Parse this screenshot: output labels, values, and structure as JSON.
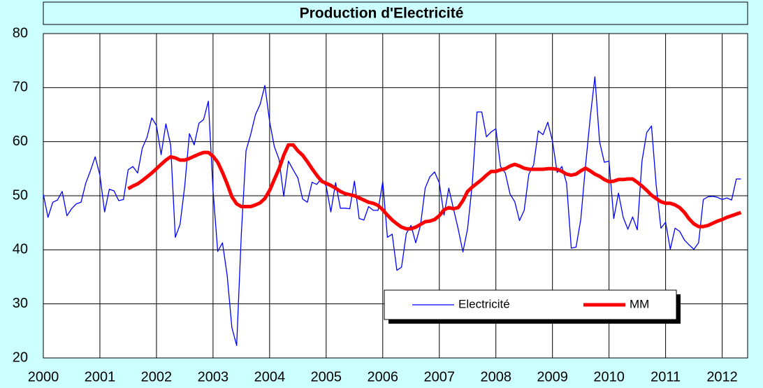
{
  "chart_data": {
    "type": "line",
    "title": "Production d'Electricité",
    "x": [
      2000,
      2000.083,
      2000.167,
      2000.25,
      2000.333,
      2000.417,
      2000.5,
      2000.583,
      2000.667,
      2000.75,
      2000.833,
      2000.917,
      2001,
      2001.083,
      2001.167,
      2001.25,
      2001.333,
      2001.417,
      2001.5,
      2001.583,
      2001.667,
      2001.75,
      2001.833,
      2001.917,
      2002,
      2002.083,
      2002.167,
      2002.25,
      2002.333,
      2002.417,
      2002.5,
      2002.583,
      2002.667,
      2002.75,
      2002.833,
      2002.917,
      2003,
      2003.083,
      2003.167,
      2003.25,
      2003.333,
      2003.417,
      2003.5,
      2003.583,
      2003.667,
      2003.75,
      2003.833,
      2003.917,
      2004,
      2004.083,
      2004.167,
      2004.25,
      2004.333,
      2004.417,
      2004.5,
      2004.583,
      2004.667,
      2004.75,
      2004.833,
      2004.917,
      2005,
      2005.083,
      2005.167,
      2005.25,
      2005.333,
      2005.417,
      2005.5,
      2005.583,
      2005.667,
      2005.75,
      2005.833,
      2005.917,
      2006,
      2006.083,
      2006.167,
      2006.25,
      2006.333,
      2006.417,
      2006.5,
      2006.583,
      2006.667,
      2006.75,
      2006.833,
      2006.917,
      2007,
      2007.083,
      2007.167,
      2007.25,
      2007.333,
      2007.417,
      2007.5,
      2007.583,
      2007.667,
      2007.75,
      2007.833,
      2007.917,
      2008,
      2008.083,
      2008.167,
      2008.25,
      2008.333,
      2008.417,
      2008.5,
      2008.583,
      2008.667,
      2008.75,
      2008.833,
      2008.917,
      2009,
      2009.083,
      2009.167,
      2009.25,
      2009.333,
      2009.417,
      2009.5,
      2009.583,
      2009.667,
      2009.75,
      2009.833,
      2009.917,
      2010,
      2010.083,
      2010.167,
      2010.25,
      2010.333,
      2010.417,
      2010.5,
      2010.583,
      2010.667,
      2010.75,
      2010.833,
      2010.917,
      2011,
      2011.083,
      2011.167,
      2011.25,
      2011.333,
      2011.417,
      2011.5,
      2011.583,
      2011.667,
      2011.75,
      2011.833,
      2011.917,
      2012,
      2012.083,
      2012.167,
      2012.25,
      2012.333
    ],
    "series": [
      {
        "name": "Electricité",
        "color": "#0000ff",
        "width": 1.3,
        "values": [
          50.3,
          46,
          48.8,
          49.2,
          50.8,
          46.3,
          47.6,
          48.5,
          48.8,
          52.3,
          54.6,
          57.2,
          53.8,
          47,
          51.2,
          50.9,
          49.1,
          49.3,
          54.8,
          55.4,
          54.2,
          58.8,
          60.8,
          64.4,
          63,
          57.6,
          63.3,
          59.4,
          42.3,
          44.7,
          51.8,
          61.5,
          59.4,
          63.4,
          64.1,
          67.5,
          51,
          39.7,
          41.3,
          35.3,
          25.6,
          22.3,
          43,
          58.3,
          61.4,
          65,
          66.9,
          70.4,
          63.7,
          59.1,
          56.7,
          49.9,
          56.4,
          54.8,
          53.3,
          49.4,
          48.8,
          52.5,
          52.1,
          53.2,
          51.8,
          47,
          52.4,
          47.7,
          47.7,
          47.6,
          52.7,
          45.8,
          45.5,
          48,
          47.3,
          47.3,
          52.6,
          42.3,
          42.9,
          36.2,
          36.8,
          43,
          44.5,
          41.3,
          44.5,
          51.4,
          53.5,
          54.4,
          52.4,
          46.4,
          51.4,
          47.6,
          43.9,
          39.6,
          43.9,
          52.2,
          65.5,
          65.5,
          60.9,
          61.8,
          62.4,
          55.4,
          54.2,
          50.3,
          48.9,
          45.4,
          47.3,
          54,
          55.7,
          62,
          61.3,
          63.6,
          60.1,
          54.3,
          55.4,
          52.3,
          40.3,
          40.5,
          45.6,
          55.4,
          64.4,
          72,
          60,
          56.2,
          56.4,
          45.8,
          50.5,
          46,
          43.8,
          46.1,
          43.7,
          56.4,
          61.7,
          62.9,
          52,
          44,
          45.1,
          40.1,
          44,
          43.4,
          41.8,
          40.9,
          40.1,
          41.3,
          49.3,
          49.8,
          49.9,
          49.7,
          49.3,
          49.6,
          49.2,
          53.1,
          53.1
        ]
      },
      {
        "name": "MM",
        "color": "#ff0000",
        "width": 5,
        "values": [
          null,
          null,
          null,
          null,
          null,
          null,
          null,
          null,
          null,
          null,
          null,
          null,
          null,
          null,
          null,
          null,
          null,
          null,
          51.3,
          51.8,
          52.2,
          52.8,
          53.5,
          54.2,
          55,
          55.8,
          56.6,
          57.2,
          57,
          56.6,
          56.6,
          56.9,
          57.3,
          57.7,
          58,
          58,
          57.3,
          56.2,
          54.3,
          52.2,
          49.8,
          48.5,
          48,
          48,
          48,
          48.3,
          48.7,
          49.5,
          51,
          53,
          55,
          57.5,
          59.4,
          59.4,
          58.3,
          57.5,
          56.3,
          55,
          53.8,
          52.7,
          52.3,
          51.9,
          51.4,
          50.8,
          50.4,
          50.2,
          50,
          49.6,
          49.2,
          48.8,
          48.6,
          48.2,
          47.4,
          46.4,
          45.5,
          44.8,
          44.2,
          43.9,
          43.9,
          44.2,
          44.7,
          45.2,
          45.3,
          45.6,
          46.3,
          47.4,
          47.8,
          47.6,
          47.8,
          49.1,
          50.8,
          51.6,
          52.3,
          53,
          53.8,
          54.5,
          54.5,
          54.8,
          55,
          55.5,
          55.8,
          55.5,
          55.1,
          54.9,
          54.9,
          54.9,
          54.9,
          55,
          55,
          54.9,
          54.5,
          54,
          53.8,
          54,
          54.6,
          55.1,
          54.6,
          54,
          53.6,
          53,
          52.6,
          52.7,
          53,
          53,
          53.1,
          53.1,
          52.5,
          51.8,
          51,
          50.1,
          49.5,
          48.9,
          48.6,
          48.6,
          48.3,
          47.8,
          46.9,
          45.7,
          44.8,
          44.3,
          44.3,
          44.5,
          44.9,
          45.3,
          45.6,
          46,
          46.3,
          46.6,
          46.9
        ]
      }
    ],
    "xlim": [
      2000,
      2012.45
    ],
    "xticks": [
      2000,
      2001,
      2002,
      2003,
      2004,
      2005,
      2006,
      2007,
      2008,
      2009,
      2010,
      2011,
      2012
    ],
    "ylim": [
      20,
      80
    ],
    "yticks": [
      20,
      30,
      40,
      50,
      60,
      70,
      80
    ],
    "grid": true
  }
}
